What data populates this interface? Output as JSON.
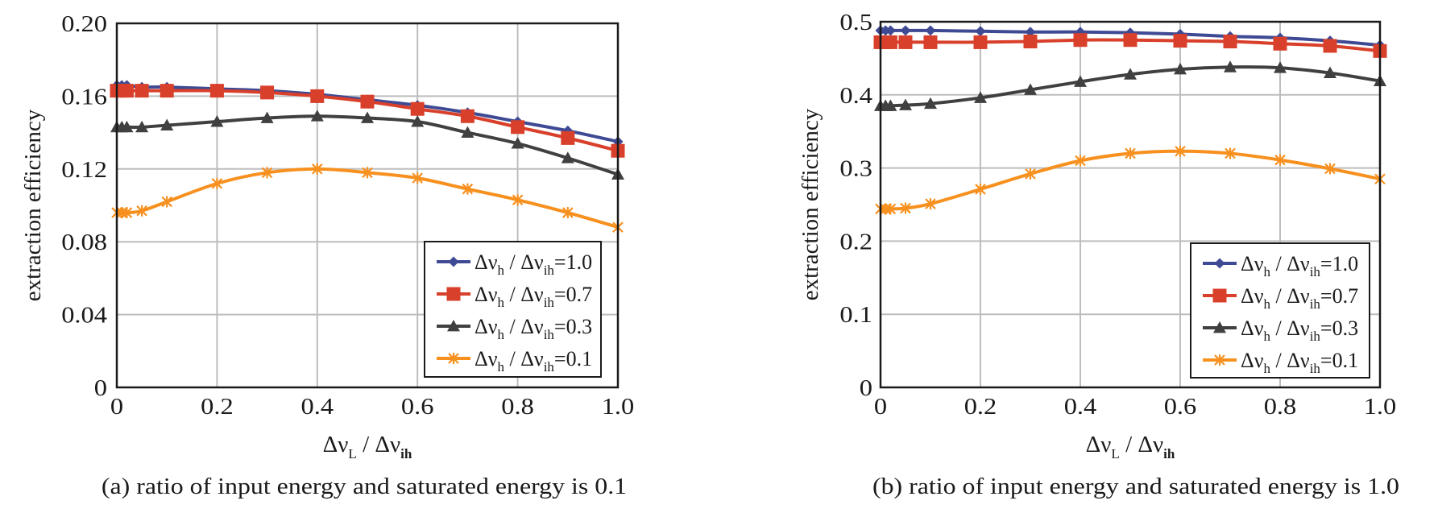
{
  "chart_data": [
    {
      "type": "line",
      "panel": "a",
      "caption": "(a) ratio of input energy and saturated energy is 0.1",
      "xlabel": {
        "main": "Δν",
        "sub1": "L",
        "sep": " / Δν",
        "sub2": "ih"
      },
      "ylabel": "extraction efficiency",
      "xlim": [
        0,
        1.0
      ],
      "ylim": [
        0,
        0.2
      ],
      "xticks": [
        0,
        0.2,
        0.4,
        0.6,
        0.8,
        1.0
      ],
      "xtick_labels": [
        "0",
        "0.2",
        "0.4",
        "0.6",
        "0.8",
        "1.0"
      ],
      "yticks": [
        0,
        0.04,
        0.08,
        0.12,
        0.16,
        0.2
      ],
      "ytick_labels": [
        "0",
        "0.04",
        "0.08",
        "0.12",
        "0.16",
        "0.20"
      ],
      "grid": true,
      "legend_position": "lower-right",
      "x": [
        0,
        0.01,
        0.02,
        0.05,
        0.1,
        0.2,
        0.3,
        0.4,
        0.5,
        0.6,
        0.7,
        0.8,
        0.9,
        1.0
      ],
      "series": [
        {
          "name": "Δνh / Δνih=1.0",
          "ratio": "1.0",
          "color": "#3f4a94",
          "marker": "diamond",
          "values": [
            0.166,
            0.166,
            0.166,
            0.165,
            0.165,
            0.164,
            0.163,
            0.161,
            0.158,
            0.155,
            0.151,
            0.146,
            0.141,
            0.135
          ]
        },
        {
          "name": "Δνh / Δνih=0.7",
          "ratio": "0.7",
          "color": "#d9402b",
          "marker": "square",
          "values": [
            0.163,
            0.163,
            0.163,
            0.163,
            0.163,
            0.163,
            0.162,
            0.16,
            0.157,
            0.153,
            0.149,
            0.143,
            0.137,
            0.13
          ]
        },
        {
          "name": "Δνh / Δνih=0.3",
          "ratio": "0.3",
          "color": "#404040",
          "marker": "triangle",
          "values": [
            0.143,
            0.143,
            0.143,
            0.143,
            0.144,
            0.146,
            0.148,
            0.149,
            0.148,
            0.146,
            0.14,
            0.134,
            0.126,
            0.117
          ]
        },
        {
          "name": "Δνh / Δνih=0.1",
          "ratio": "0.1",
          "color": "#f7901e",
          "marker": "x",
          "values": [
            0.096,
            0.096,
            0.096,
            0.097,
            0.102,
            0.112,
            0.118,
            0.12,
            0.118,
            0.115,
            0.109,
            0.103,
            0.096,
            0.088
          ]
        }
      ]
    },
    {
      "type": "line",
      "panel": "b",
      "caption": "(b) ratio of input energy and saturated energy is 1.0",
      "xlabel": {
        "main": "Δν",
        "sub1": "L",
        "sep": " / Δν",
        "sub2": "ih"
      },
      "ylabel": "extraction efficiency",
      "xlim": [
        0,
        1.0
      ],
      "ylim": [
        0,
        0.5
      ],
      "xticks": [
        0,
        0.2,
        0.4,
        0.6,
        0.8,
        1.0
      ],
      "xtick_labels": [
        "0",
        "0.2",
        "0.4",
        "0.6",
        "0.8",
        "1.0"
      ],
      "yticks": [
        0,
        0.1,
        0.2,
        0.3,
        0.4,
        0.5
      ],
      "ytick_labels": [
        "0",
        "0.1",
        "0.2",
        "0.3",
        "0.4",
        "0.5"
      ],
      "grid": true,
      "legend_position": "lower-right",
      "x": [
        0,
        0.01,
        0.02,
        0.05,
        0.1,
        0.2,
        0.3,
        0.4,
        0.5,
        0.6,
        0.7,
        0.8,
        0.9,
        1.0
      ],
      "series": [
        {
          "name": "Δνh / Δνih=1.0",
          "ratio": "1.0",
          "color": "#3f4a94",
          "marker": "diamond",
          "values": [
            0.488,
            0.488,
            0.488,
            0.488,
            0.488,
            0.487,
            0.486,
            0.486,
            0.485,
            0.483,
            0.48,
            0.478,
            0.474,
            0.468
          ]
        },
        {
          "name": "Δνh / Δνih=0.7",
          "ratio": "0.7",
          "color": "#d9402b",
          "marker": "square",
          "values": [
            0.472,
            0.472,
            0.472,
            0.472,
            0.472,
            0.472,
            0.473,
            0.475,
            0.475,
            0.474,
            0.473,
            0.47,
            0.467,
            0.46
          ]
        },
        {
          "name": "Δνh / Δνih=0.3",
          "ratio": "0.3",
          "color": "#404040",
          "marker": "triangle",
          "values": [
            0.385,
            0.385,
            0.385,
            0.386,
            0.388,
            0.396,
            0.407,
            0.418,
            0.428,
            0.435,
            0.438,
            0.437,
            0.43,
            0.419
          ]
        },
        {
          "name": "Δνh / Δνih=0.1",
          "ratio": "0.1",
          "color": "#f7901e",
          "marker": "x",
          "values": [
            0.244,
            0.244,
            0.244,
            0.245,
            0.251,
            0.271,
            0.292,
            0.31,
            0.32,
            0.323,
            0.32,
            0.311,
            0.299,
            0.285
          ]
        }
      ]
    }
  ]
}
